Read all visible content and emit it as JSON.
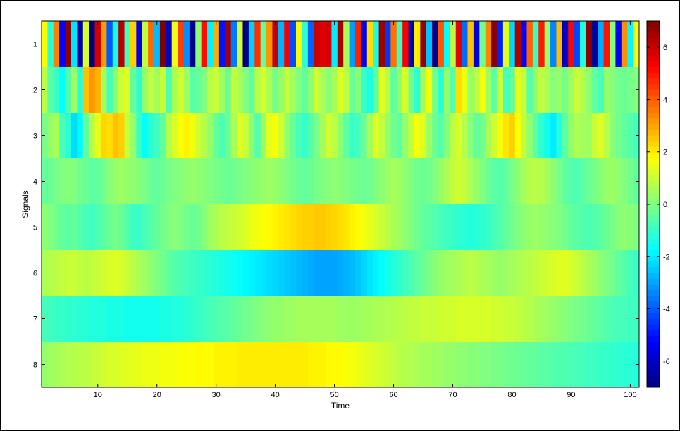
{
  "chart_data": {
    "type": "heatmap",
    "title": "",
    "xlabel": "Time",
    "ylabel": "Signals",
    "xlim": [
      0.5,
      101.5
    ],
    "ylim": [
      0.5,
      8.5
    ],
    "x_ticks": [
      10,
      20,
      30,
      40,
      50,
      60,
      70,
      80,
      90,
      100
    ],
    "y_ticks": [
      1,
      2,
      3,
      4,
      5,
      6,
      7,
      8
    ],
    "colormap": "jet",
    "clim": [
      -7,
      7
    ],
    "colorbar": {
      "position": "right",
      "ticks": [
        6,
        4,
        2,
        0,
        -2,
        -4,
        -6
      ]
    },
    "rows": [
      {
        "signal": 1,
        "values": [
          1.8,
          -1.2,
          3.5,
          -5.2,
          6.8,
          -2.1,
          -6.5,
          1.2,
          -7.2,
          5.9,
          3.1,
          -4.0,
          -1.5,
          6.2,
          -0.8,
          2.4,
          -5.6,
          0.9,
          3.8,
          -2.7,
          7.0,
          -6.1,
          1.5,
          4.4,
          -3.3,
          -6.8,
          0.2,
          5.1,
          -1.9,
          2.9,
          -5.0,
          6.5,
          -3.6,
          1.1,
          -6.9,
          -2.4,
          4.6,
          -0.4,
          3.2,
          6.1,
          -2.8,
          5.4,
          -4.2,
          1.7,
          -1.1,
          -3.9,
          6.0,
          5.7,
          5.8,
          -2.0,
          6.4,
          0.6,
          -3.1,
          4.8,
          -5.5,
          2.2,
          -1.4,
          6.6,
          -4.5,
          3.7,
          -0.9,
          5.3,
          -6.3,
          2.0,
          6.7,
          -2.6,
          -7.0,
          4.1,
          -1.7,
          0.8,
          5.6,
          -3.8,
          2.6,
          -5.8,
          -0.2,
          3.4,
          6.9,
          -4.8,
          1.4,
          -2.3,
          6.3,
          -5.3,
          3.9,
          -1.0,
          4.9,
          0.4,
          -3.4,
          2.7,
          -6.0,
          5.2,
          -4.3,
          -1.3,
          6.8,
          -6.6,
          -2.9,
          5.0,
          0.1,
          -5.4,
          3.3,
          -1.8,
          1.6
        ]
      },
      {
        "signal": 2,
        "values": [
          0.8,
          -0.5,
          -1.0,
          -1.7,
          -0.6,
          0.4,
          -1.3,
          2.6,
          3.2,
          2.8,
          0.6,
          -0.8,
          0.1,
          1.1,
          1.3,
          -0.4,
          -1.1,
          0.3,
          0.9,
          0.5,
          1.0,
          -0.7,
          0.6,
          1.1,
          0.4,
          -0.5,
          -0.4,
          0.0,
          0.8,
          1.0,
          0.4,
          -0.3,
          0.9,
          0.5,
          0.0,
          -0.5,
          0.7,
          1.2,
          0.6,
          -0.2,
          0.3,
          0.9,
          0.5,
          0.0,
          -0.4,
          0.2,
          1.0,
          0.6,
          0.1,
          0.5,
          1.3,
          0.8,
          -0.3,
          0.1,
          -1.0,
          -1.4,
          -0.4,
          1.4,
          0.7,
          -0.5,
          0.3,
          1.2,
          -0.3,
          -1.1,
          0.5,
          1.6,
          -0.2,
          -1.2,
          0.3,
          -0.6,
          2.2,
          1.5,
          0.3,
          0.8,
          1.6,
          0.4,
          -0.5,
          1.1,
          -0.8,
          -0.4,
          1.4,
          0.9,
          -0.6,
          0.3,
          0.9,
          0.6,
          0.1,
          0.3,
          -0.1,
          0.4,
          1.0,
          0.7,
          0.2,
          -0.4,
          -0.8,
          0.3,
          0.1,
          -0.2,
          -0.3,
          -0.1,
          0.0
        ]
      },
      {
        "signal": 3,
        "values": [
          -0.1,
          0.3,
          0.6,
          -0.8,
          -1.2,
          -2.2,
          -1.8,
          -0.4,
          0.7,
          1.4,
          2.3,
          2.2,
          2.6,
          2.4,
          1.0,
          0.3,
          -1.0,
          -1.7,
          -1.2,
          -0.9,
          -0.4,
          0.7,
          1.2,
          1.7,
          1.9,
          1.6,
          1.1,
          0.7,
          0.3,
          -0.4,
          -0.7,
          -0.3,
          0.6,
          1.3,
          1.0,
          0.1,
          -0.6,
          0.3,
          1.4,
          1.7,
          1.1,
          0.3,
          -0.3,
          -0.8,
          -1.0,
          -0.6,
          -0.1,
          0.5,
          1.1,
          0.8,
          0.2,
          -0.5,
          -1.0,
          -0.8,
          -0.3,
          0.5,
          1.3,
          0.9,
          0.3,
          -0.2,
          -0.5,
          0.3,
          1.0,
          1.6,
          1.3,
          0.4,
          -0.3,
          -0.6,
          0.0,
          0.8,
          1.2,
          0.7,
          0.1,
          -0.4,
          -0.2,
          0.6,
          1.1,
          1.6,
          2.1,
          2.4,
          1.7,
          0.9,
          0.2,
          -0.5,
          -1.1,
          -1.6,
          -2.0,
          -1.3,
          -0.5,
          0.3,
          0.6,
          0.5,
          0.4,
          1.0,
          1.3,
          0.8,
          0.1,
          -0.2,
          -0.4,
          -0.6,
          -0.8
        ]
      },
      {
        "signal": 4,
        "values": [
          -0.4,
          -0.3,
          -0.1,
          0.0,
          0.1,
          0.0,
          -0.2,
          -0.3,
          -0.5,
          -0.4,
          -0.2,
          0.1,
          0.3,
          0.4,
          0.3,
          0.2,
          0.1,
          -0.1,
          -0.3,
          -0.4,
          -0.3,
          -0.1,
          0.0,
          0.1,
          0.2,
          0.3,
          0.2,
          0.1,
          0.0,
          -0.1,
          -0.2,
          -0.3,
          -0.2,
          -0.1,
          0.0,
          0.1,
          0.2,
          0.3,
          0.4,
          0.3,
          0.2,
          0.0,
          -0.2,
          -0.3,
          -0.4,
          -0.3,
          -0.1,
          0.0,
          0.1,
          0.2,
          0.1,
          0.0,
          -0.1,
          -0.2,
          -0.3,
          -0.2,
          0.0,
          0.2,
          0.4,
          0.5,
          0.4,
          0.2,
          0.0,
          -0.2,
          -0.3,
          -0.2,
          0.0,
          0.3,
          0.6,
          0.9,
          1.1,
          0.9,
          0.6,
          0.3,
          0.0,
          -0.3,
          -0.5,
          -0.6,
          -0.4,
          -0.1,
          0.2,
          0.5,
          0.7,
          0.8,
          0.7,
          0.5,
          0.2,
          -0.1,
          -0.4,
          -0.6,
          -0.7,
          -0.5,
          -0.3,
          -0.1,
          0.1,
          0.3,
          0.4,
          0.2,
          0.0,
          -0.2,
          -0.4
        ]
      },
      {
        "signal": 5,
        "values": [
          0.2,
          0.0,
          -0.2,
          -0.4,
          -0.5,
          -0.4,
          -0.6,
          -0.8,
          -0.9,
          -0.7,
          -0.5,
          -0.3,
          -0.1,
          -0.3,
          -0.6,
          -0.9,
          -1.0,
          -0.8,
          -0.6,
          -0.4,
          -0.2,
          0.0,
          0.1,
          0.0,
          -0.2,
          -0.3,
          -0.2,
          0.1,
          0.4,
          0.6,
          0.8,
          0.9,
          1.0,
          1.1,
          1.3,
          1.5,
          1.6,
          1.7,
          1.8,
          1.9,
          2.0,
          2.1,
          2.2,
          2.3,
          2.4,
          2.4,
          2.5,
          2.5,
          2.4,
          2.3,
          2.2,
          2.1,
          1.9,
          1.8,
          1.6,
          1.4,
          1.2,
          1.0,
          0.8,
          0.6,
          0.4,
          0.2,
          0.0,
          -0.2,
          -0.4,
          -0.5,
          -0.6,
          -0.8,
          -0.9,
          -1.0,
          -1.1,
          -1.2,
          -1.3,
          -1.2,
          -1.1,
          -1.0,
          -0.8,
          -0.6,
          -0.4,
          -0.2,
          0.0,
          0.2,
          0.3,
          0.4,
          0.3,
          0.2,
          0.1,
          0.0,
          -0.2,
          -0.4,
          -0.5,
          -0.6,
          -0.7,
          -0.6,
          -0.5,
          -0.3,
          -0.1,
          0.1,
          0.2,
          0.1,
          0.0
        ]
      },
      {
        "signal": 6,
        "values": [
          0.6,
          0.7,
          0.8,
          0.9,
          1.0,
          1.0,
          0.9,
          0.8,
          0.9,
          1.0,
          1.1,
          1.2,
          1.3,
          1.2,
          1.0,
          0.8,
          0.6,
          0.4,
          0.2,
          0.0,
          -0.2,
          -0.4,
          -0.6,
          -0.7,
          -0.8,
          -0.9,
          -1.0,
          -1.1,
          -1.2,
          -1.3,
          -1.4,
          -1.5,
          -1.6,
          -1.7,
          -1.8,
          -1.9,
          -2.0,
          -2.1,
          -2.2,
          -2.3,
          -2.4,
          -2.5,
          -2.6,
          -2.7,
          -2.8,
          -2.9,
          -3.0,
          -3.0,
          -3.0,
          -3.0,
          -2.9,
          -2.8,
          -2.7,
          -2.5,
          -2.3,
          -2.1,
          -1.9,
          -1.7,
          -1.5,
          -1.3,
          -1.1,
          -0.9,
          -0.7,
          -0.5,
          -0.3,
          -0.1,
          0.1,
          0.3,
          0.4,
          0.5,
          0.6,
          0.7,
          0.8,
          0.7,
          0.6,
          0.5,
          0.4,
          0.3,
          0.4,
          0.5,
          0.6,
          0.7,
          0.8,
          0.9,
          1.0,
          1.1,
          1.2,
          1.3,
          1.3,
          1.2,
          1.0,
          0.8,
          0.6,
          0.4,
          0.2,
          0.0,
          -0.2,
          -0.4,
          -0.6,
          -0.8,
          -1.0
        ]
      },
      {
        "signal": 7,
        "values": [
          -0.8,
          -0.9,
          -1.0,
          -1.0,
          -1.1,
          -1.1,
          -1.2,
          -1.2,
          -1.3,
          -1.3,
          -1.3,
          -1.4,
          -1.4,
          -1.4,
          -1.5,
          -1.5,
          -1.5,
          -1.5,
          -1.5,
          -1.5,
          -1.4,
          -1.4,
          -1.3,
          -1.3,
          -1.2,
          -1.1,
          -1.0,
          -0.9,
          -0.8,
          -0.7,
          -0.6,
          -0.5,
          -0.4,
          -0.3,
          -0.2,
          -0.1,
          0.0,
          0.1,
          0.2,
          0.3,
          0.3,
          0.4,
          0.4,
          0.5,
          0.5,
          0.5,
          0.5,
          0.5,
          0.5,
          0.5,
          0.4,
          0.4,
          0.4,
          0.4,
          0.5,
          0.5,
          0.6,
          0.6,
          0.7,
          0.7,
          0.8,
          0.8,
          0.9,
          0.9,
          1.0,
          1.0,
          1.0,
          1.1,
          1.1,
          1.1,
          1.2,
          1.2,
          1.2,
          1.2,
          1.2,
          1.2,
          1.1,
          1.1,
          1.0,
          1.0,
          0.9,
          0.8,
          0.7,
          0.6,
          0.5,
          0.4,
          0.3,
          0.2,
          0.1,
          0.0,
          -0.1,
          -0.2,
          -0.3,
          -0.4,
          -0.5,
          -0.6,
          -0.7,
          -0.8,
          -0.8,
          -0.9,
          -0.9
        ]
      },
      {
        "signal": 8,
        "values": [
          0.3,
          0.4,
          0.5,
          0.6,
          0.7,
          0.7,
          0.8,
          0.8,
          0.9,
          1.0,
          1.1,
          1.2,
          1.2,
          1.3,
          1.3,
          1.4,
          1.4,
          1.5,
          1.5,
          1.5,
          1.6,
          1.6,
          1.6,
          1.7,
          1.7,
          1.7,
          1.8,
          1.8,
          1.8,
          1.9,
          1.9,
          1.9,
          1.9,
          2.0,
          2.0,
          2.0,
          2.0,
          2.0,
          2.0,
          2.0,
          2.0,
          2.0,
          2.0,
          2.0,
          2.0,
          1.9,
          1.9,
          1.9,
          1.8,
          1.8,
          1.8,
          1.7,
          1.6,
          1.5,
          1.4,
          1.3,
          1.2,
          1.1,
          1.0,
          0.9,
          0.8,
          0.7,
          0.7,
          0.6,
          0.5,
          0.5,
          0.4,
          0.4,
          0.3,
          0.3,
          0.2,
          0.2,
          0.1,
          0.1,
          0.0,
          0.0,
          -0.1,
          -0.1,
          -0.2,
          -0.2,
          -0.3,
          -0.3,
          -0.4,
          -0.4,
          -0.5,
          -0.5,
          -0.6,
          -0.6,
          -0.7,
          -0.7,
          -0.8,
          -0.8,
          -0.9,
          -0.9,
          -1.0,
          -1.0,
          -1.1,
          -1.1,
          -1.2,
          -1.2,
          -1.3
        ]
      }
    ]
  }
}
